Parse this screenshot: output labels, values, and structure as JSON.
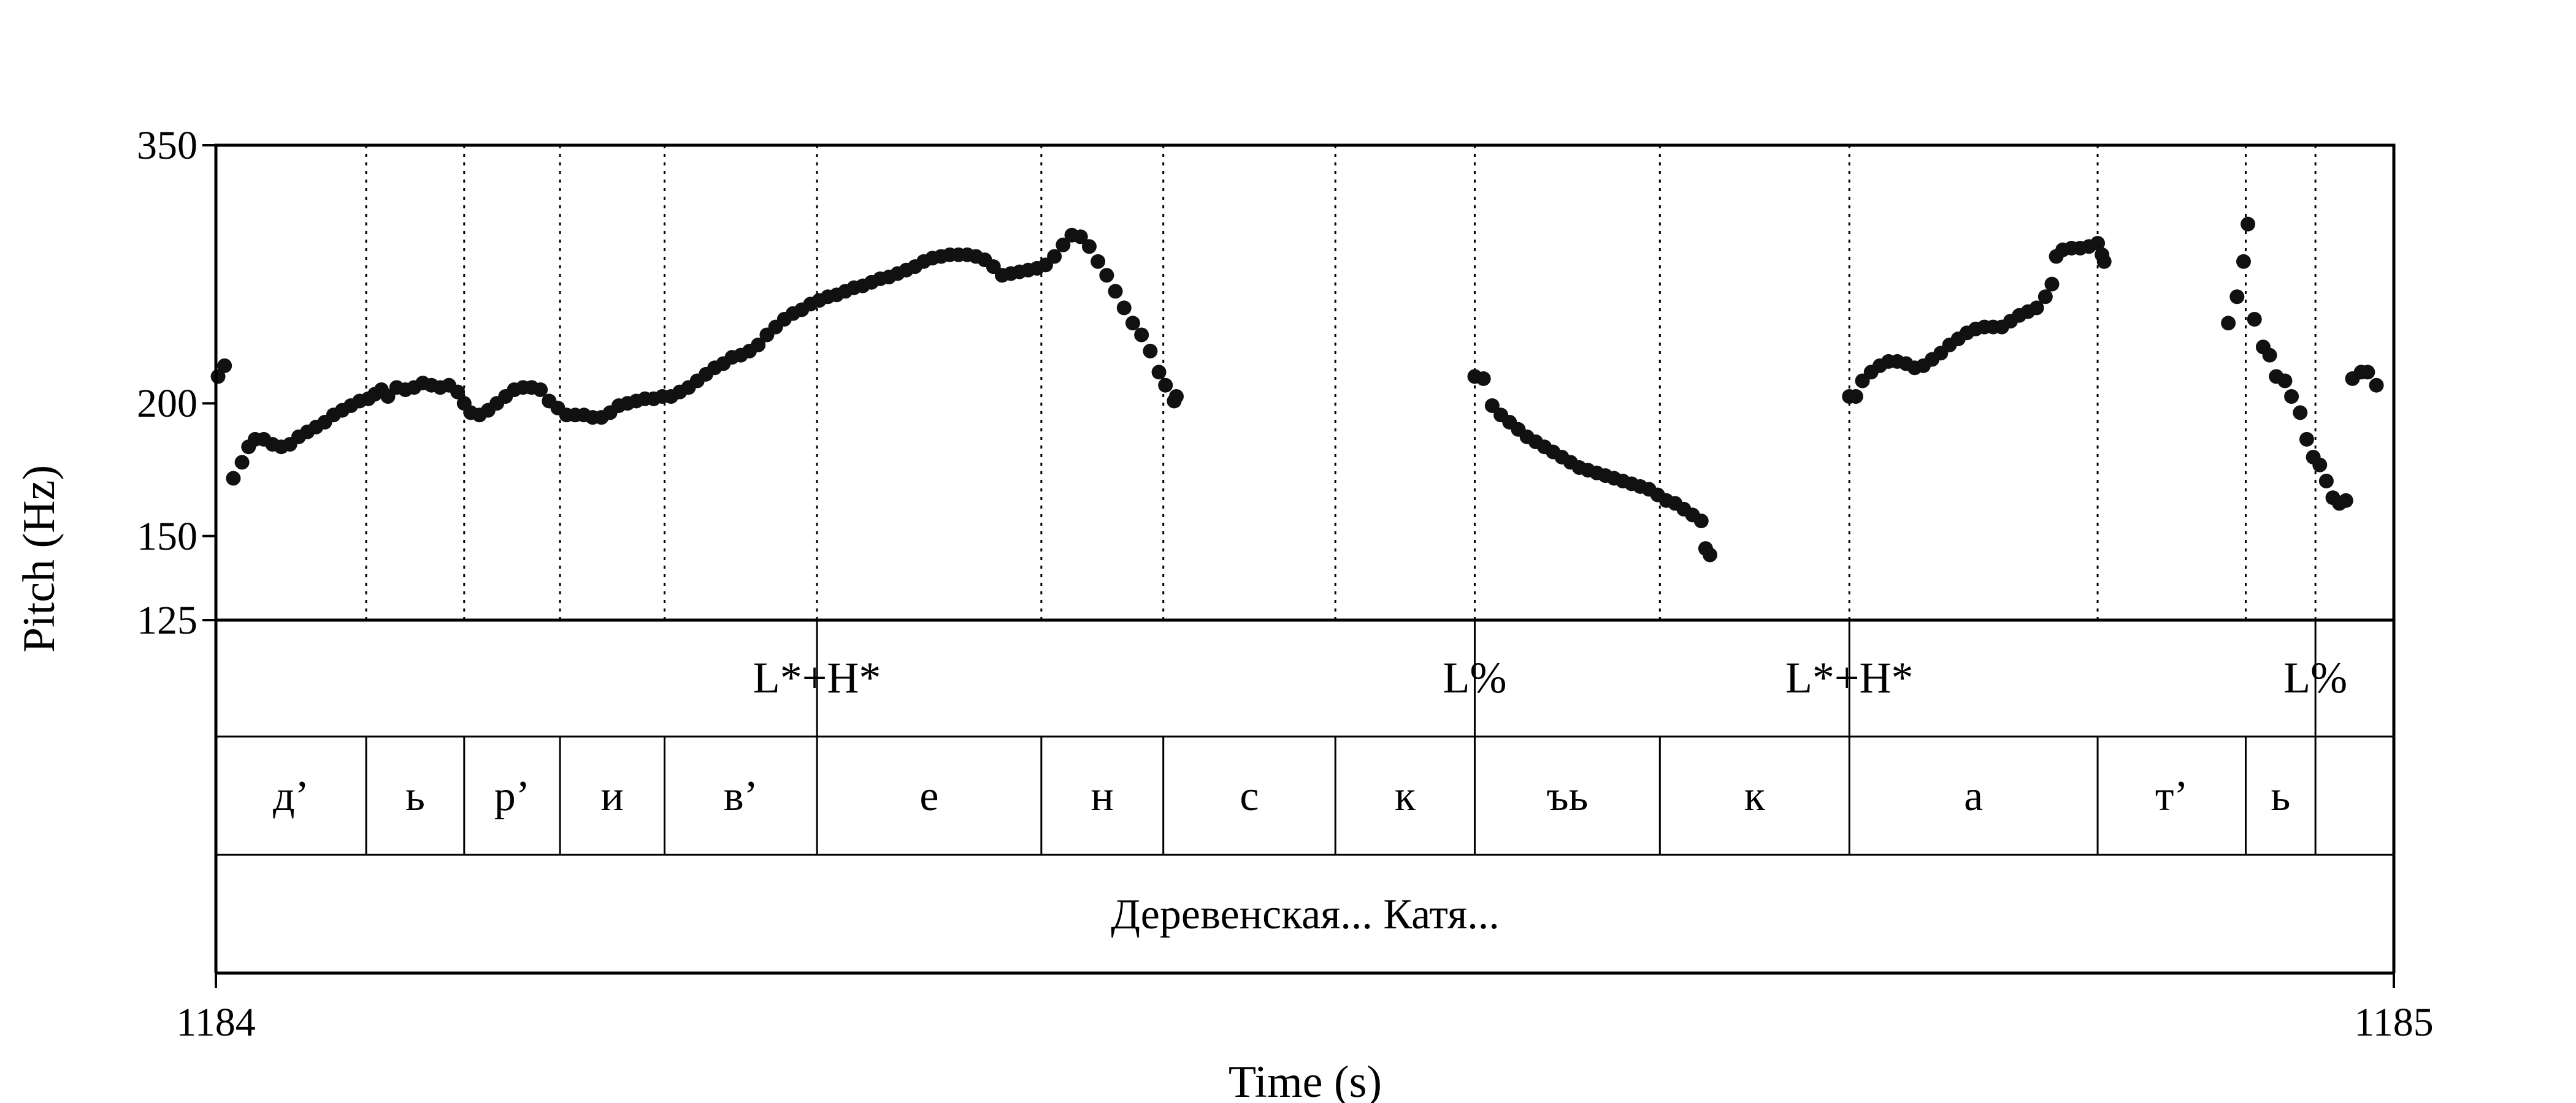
{
  "chart_data": {
    "type": "scatter",
    "title": "",
    "xlabel": "Time (s)",
    "ylabel": "Pitch (Hz)",
    "xlim": [
      1184,
      1185
    ],
    "ylim": [
      125,
      350
    ],
    "y_scale": "log",
    "x_ticks": [
      "1184",
      "1185"
    ],
    "y_ticks": [
      {
        "value": 350,
        "label": "350"
      },
      {
        "value": 200,
        "label": "200"
      },
      {
        "value": 150,
        "label": "150"
      },
      {
        "value": 125,
        "label": "125"
      }
    ],
    "grid": false,
    "series": [
      {
        "color": "#111111",
        "points": [
          [
            1184.001,
            212
          ],
          [
            1184.004,
            217
          ],
          [
            1184.008,
            170
          ],
          [
            1184.012,
            176
          ],
          [
            1184.015,
            182
          ],
          [
            1184.018,
            185
          ],
          [
            1184.022,
            185
          ],
          [
            1184.026,
            183
          ],
          [
            1184.03,
            182
          ],
          [
            1184.034,
            183
          ],
          [
            1184.038,
            186
          ],
          [
            1184.042,
            188
          ],
          [
            1184.046,
            190
          ],
          [
            1184.05,
            192
          ],
          [
            1184.054,
            195
          ],
          [
            1184.058,
            197
          ],
          [
            1184.062,
            199
          ],
          [
            1184.066,
            201
          ],
          [
            1184.07,
            202
          ],
          [
            1184.073,
            204
          ],
          [
            1184.076,
            206
          ],
          [
            1184.079,
            203
          ],
          [
            1184.083,
            207
          ],
          [
            1184.087,
            206
          ],
          [
            1184.091,
            207
          ],
          [
            1184.095,
            209
          ],
          [
            1184.099,
            208
          ],
          [
            1184.103,
            207
          ],
          [
            1184.107,
            208
          ],
          [
            1184.111,
            205
          ],
          [
            1184.114,
            200
          ],
          [
            1184.117,
            196
          ],
          [
            1184.121,
            195
          ],
          [
            1184.125,
            197
          ],
          [
            1184.129,
            200
          ],
          [
            1184.133,
            203
          ],
          [
            1184.137,
            206
          ],
          [
            1184.141,
            207
          ],
          [
            1184.145,
            207
          ],
          [
            1184.149,
            206
          ],
          [
            1184.153,
            201
          ],
          [
            1184.157,
            198
          ],
          [
            1184.161,
            195
          ],
          [
            1184.165,
            195
          ],
          [
            1184.169,
            195
          ],
          [
            1184.173,
            194
          ],
          [
            1184.177,
            194
          ],
          [
            1184.181,
            196
          ],
          [
            1184.185,
            199
          ],
          [
            1184.189,
            200
          ],
          [
            1184.193,
            201
          ],
          [
            1184.197,
            202
          ],
          [
            1184.201,
            202
          ],
          [
            1184.205,
            203
          ],
          [
            1184.209,
            203
          ],
          [
            1184.213,
            205
          ],
          [
            1184.217,
            207
          ],
          [
            1184.221,
            210
          ],
          [
            1184.225,
            213
          ],
          [
            1184.229,
            216
          ],
          [
            1184.233,
            218
          ],
          [
            1184.237,
            221
          ],
          [
            1184.241,
            222
          ],
          [
            1184.245,
            224
          ],
          [
            1184.249,
            227
          ],
          [
            1184.253,
            232
          ],
          [
            1184.257,
            236
          ],
          [
            1184.261,
            240
          ],
          [
            1184.265,
            243
          ],
          [
            1184.269,
            245
          ],
          [
            1184.273,
            248
          ],
          [
            1184.277,
            250
          ],
          [
            1184.281,
            252
          ],
          [
            1184.285,
            253
          ],
          [
            1184.289,
            255
          ],
          [
            1184.293,
            257
          ],
          [
            1184.297,
            258
          ],
          [
            1184.301,
            260
          ],
          [
            1184.305,
            262
          ],
          [
            1184.309,
            263
          ],
          [
            1184.313,
            265
          ],
          [
            1184.317,
            267
          ],
          [
            1184.321,
            269
          ],
          [
            1184.325,
            272
          ],
          [
            1184.329,
            274
          ],
          [
            1184.333,
            275
          ],
          [
            1184.337,
            276
          ],
          [
            1184.341,
            276
          ],
          [
            1184.345,
            276
          ],
          [
            1184.349,
            275
          ],
          [
            1184.353,
            273
          ],
          [
            1184.357,
            269
          ],
          [
            1184.361,
            264
          ],
          [
            1184.365,
            265
          ],
          [
            1184.369,
            266
          ],
          [
            1184.373,
            267
          ],
          [
            1184.377,
            268
          ],
          [
            1184.381,
            270
          ],
          [
            1184.385,
            275
          ],
          [
            1184.389,
            282
          ],
          [
            1184.393,
            288
          ],
          [
            1184.397,
            287
          ],
          [
            1184.401,
            281
          ],
          [
            1184.405,
            272
          ],
          [
            1184.409,
            264
          ],
          [
            1184.413,
            255
          ],
          [
            1184.417,
            246
          ],
          [
            1184.421,
            238
          ],
          [
            1184.425,
            232
          ],
          [
            1184.429,
            224
          ],
          [
            1184.433,
            214
          ],
          [
            1184.436,
            208
          ],
          [
            1184.44,
            201
          ],
          [
            1184.441,
            203
          ],
          [
            1184.578,
            212
          ],
          [
            1184.582,
            211
          ],
          [
            1184.586,
            199
          ],
          [
            1184.59,
            195
          ],
          [
            1184.594,
            192
          ],
          [
            1184.598,
            189
          ],
          [
            1184.602,
            186
          ],
          [
            1184.606,
            184
          ],
          [
            1184.61,
            182
          ],
          [
            1184.614,
            180
          ],
          [
            1184.618,
            178
          ],
          [
            1184.622,
            176
          ],
          [
            1184.626,
            174
          ],
          [
            1184.63,
            173
          ],
          [
            1184.634,
            172
          ],
          [
            1184.638,
            171
          ],
          [
            1184.642,
            170
          ],
          [
            1184.646,
            169
          ],
          [
            1184.65,
            168
          ],
          [
            1184.654,
            167
          ],
          [
            1184.658,
            166
          ],
          [
            1184.662,
            164
          ],
          [
            1184.666,
            162
          ],
          [
            1184.67,
            161
          ],
          [
            1184.674,
            159
          ],
          [
            1184.678,
            157
          ],
          [
            1184.682,
            155
          ],
          [
            1184.684,
            146
          ],
          [
            1184.686,
            144
          ],
          [
            1184.75,
            203
          ],
          [
            1184.753,
            203
          ],
          [
            1184.756,
            210
          ],
          [
            1184.76,
            214
          ],
          [
            1184.764,
            217
          ],
          [
            1184.768,
            219
          ],
          [
            1184.772,
            219
          ],
          [
            1184.776,
            218
          ],
          [
            1184.78,
            216
          ],
          [
            1184.784,
            217
          ],
          [
            1184.788,
            220
          ],
          [
            1184.792,
            223
          ],
          [
            1184.796,
            227
          ],
          [
            1184.8,
            230
          ],
          [
            1184.804,
            233
          ],
          [
            1184.808,
            235
          ],
          [
            1184.812,
            236
          ],
          [
            1184.816,
            236
          ],
          [
            1184.82,
            236
          ],
          [
            1184.824,
            239
          ],
          [
            1184.828,
            242
          ],
          [
            1184.832,
            244
          ],
          [
            1184.836,
            246
          ],
          [
            1184.84,
            252
          ],
          [
            1184.843,
            259
          ],
          [
            1184.845,
            275
          ],
          [
            1184.848,
            279
          ],
          [
            1184.852,
            280
          ],
          [
            1184.856,
            280
          ],
          [
            1184.86,
            281
          ],
          [
            1184.864,
            283
          ],
          [
            1184.866,
            276
          ],
          [
            1184.867,
            272
          ],
          [
            1184.924,
            238
          ],
          [
            1184.928,
            252
          ],
          [
            1184.931,
            272
          ],
          [
            1184.933,
            295
          ],
          [
            1184.936,
            240
          ],
          [
            1184.94,
            226
          ],
          [
            1184.943,
            222
          ],
          [
            1184.946,
            212
          ],
          [
            1184.95,
            210
          ],
          [
            1184.953,
            203
          ],
          [
            1184.957,
            196
          ],
          [
            1184.96,
            185
          ],
          [
            1184.963,
            178
          ],
          [
            1184.966,
            175
          ],
          [
            1184.969,
            169
          ],
          [
            1184.972,
            163
          ],
          [
            1184.975,
            161
          ],
          [
            1184.978,
            162
          ],
          [
            1184.981,
            211
          ],
          [
            1184.985,
            214
          ],
          [
            1184.988,
            214
          ],
          [
            1184.992,
            208
          ]
        ]
      }
    ],
    "tone_tier": [
      {
        "time": 1184.276,
        "label": "L*+H*"
      },
      {
        "time": 1184.578,
        "label": "L%"
      },
      {
        "time": 1184.75,
        "label": "L*+H*"
      },
      {
        "time": 1184.964,
        "label": "L%"
      }
    ],
    "segments": [
      {
        "start": 1184.0,
        "end": 1184.069,
        "label": "д’"
      },
      {
        "start": 1184.069,
        "end": 1184.114,
        "label": "ь"
      },
      {
        "start": 1184.114,
        "end": 1184.158,
        "label": "р’"
      },
      {
        "start": 1184.158,
        "end": 1184.206,
        "label": "и"
      },
      {
        "start": 1184.206,
        "end": 1184.276,
        "label": "в’"
      },
      {
        "start": 1184.276,
        "end": 1184.379,
        "label": "е"
      },
      {
        "start": 1184.379,
        "end": 1184.435,
        "label": "н"
      },
      {
        "start": 1184.435,
        "end": 1184.514,
        "label": "с"
      },
      {
        "start": 1184.514,
        "end": 1184.578,
        "label": "к"
      },
      {
        "start": 1184.578,
        "end": 1184.663,
        "label": "ъь"
      },
      {
        "start": 1184.663,
        "end": 1184.75,
        "label": "к"
      },
      {
        "start": 1184.75,
        "end": 1184.864,
        "label": "а"
      },
      {
        "start": 1184.864,
        "end": 1184.932,
        "label": "т’"
      },
      {
        "start": 1184.932,
        "end": 1184.964,
        "label": "ь"
      },
      {
        "start": 1184.964,
        "end": 1185.0,
        "label": ""
      }
    ],
    "word_tier": "Деревенская... Катя..."
  }
}
